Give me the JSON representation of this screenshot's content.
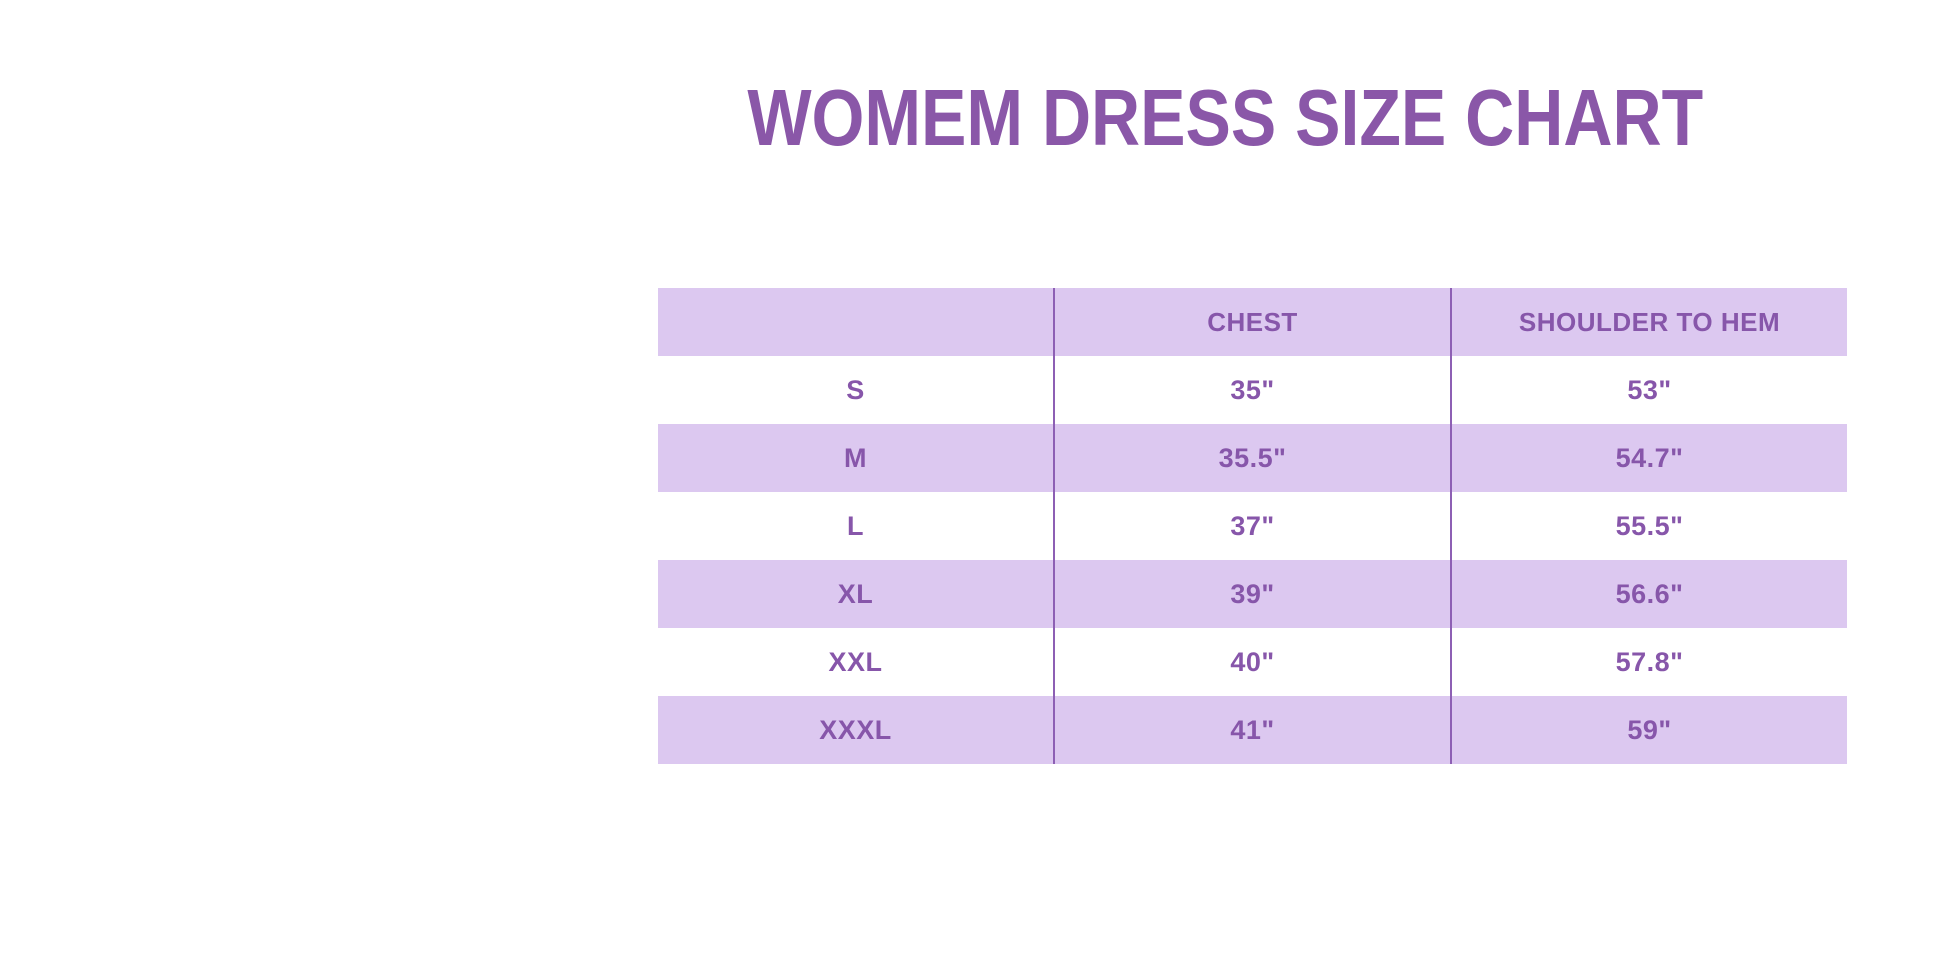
{
  "title": "WOMEM DRESS SIZE CHART",
  "chart_data": {
    "type": "table",
    "title": "WOMEM DRESS SIZE CHART",
    "columns": [
      "",
      "CHEST",
      "SHOULDER TO HEM"
    ],
    "rows": [
      [
        "S",
        "35\"",
        "53\""
      ],
      [
        "M",
        "35.5\"",
        "54.7\""
      ],
      [
        "L",
        "37\"",
        "55.5\""
      ],
      [
        "XL",
        "39\"",
        "56.6\""
      ],
      [
        "XXL",
        "40\"",
        "57.8\""
      ],
      [
        "XXXL",
        "41\"",
        "59\""
      ]
    ],
    "layout": {
      "columns_equal_width": true,
      "row_striping": "header, M, XL, XXXL rows shaded lavender; S, L, XXL rows white",
      "column_separator_lines": true
    }
  },
  "colors": {
    "background": "#FFFFFF",
    "title_text": "#8A57A8",
    "row_stripe": "#DCC8F0",
    "cell_text": "#8756AA",
    "column_line": "#8D5FB4"
  }
}
